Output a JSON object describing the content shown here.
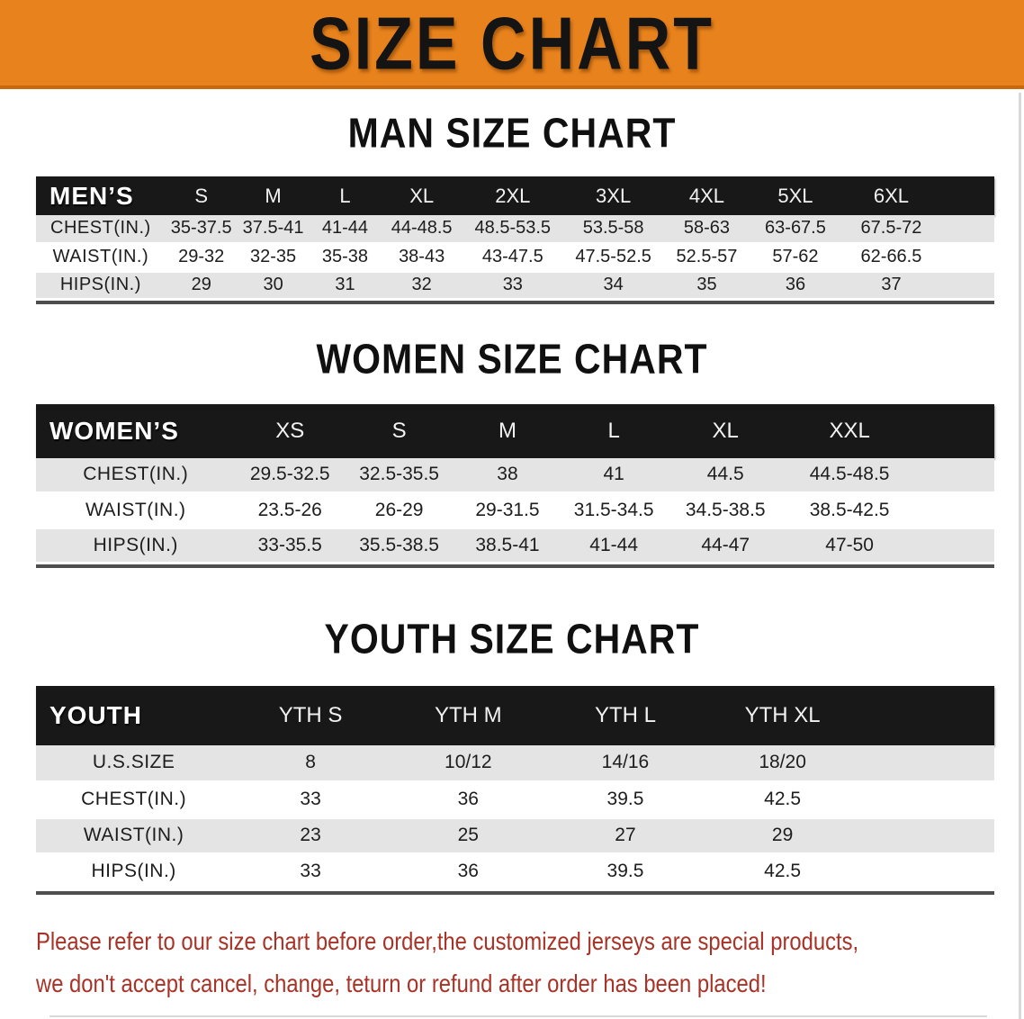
{
  "banner": {
    "title": "SIZE CHART"
  },
  "colors": {
    "banner_bg": "#E8821C",
    "banner_edge": "#C8690F",
    "header_bar": "#181818",
    "row_gray": "#E4E4E4",
    "note_red": "#A93226"
  },
  "sections": [
    {
      "heading": "MAN SIZE CHART",
      "table": {
        "group_label": "MEN’S",
        "columns": [
          "S",
          "M",
          "L",
          "XL",
          "2XL",
          "3XL",
          "4XL",
          "5XL",
          "6XL"
        ],
        "rows": [
          {
            "label": "CHEST(IN.)",
            "values": [
              "35-37.5",
              "37.5-41",
              "41-44",
              "44-48.5",
              "48.5-53.5",
              "53.5-58",
              "58-63",
              "63-67.5",
              "67.5-72"
            ]
          },
          {
            "label": "WAIST(IN.)",
            "values": [
              "29-32",
              "32-35",
              "35-38",
              "38-43",
              "43-47.5",
              "47.5-52.5",
              "52.5-57",
              "57-62",
              "62-66.5"
            ]
          },
          {
            "label": "HIPS(IN.)",
            "values": [
              "29",
              "30",
              "31",
              "32",
              "33",
              "34",
              "35",
              "36",
              "37"
            ]
          }
        ]
      }
    },
    {
      "heading": "WOMEN SIZE CHART",
      "table": {
        "group_label": "WOMEN’S",
        "columns": [
          "XS",
          "S",
          "M",
          "L",
          "XL",
          "XXL"
        ],
        "rows": [
          {
            "label": "CHEST(IN.)",
            "values": [
              "29.5-32.5",
              "32.5-35.5",
              "38",
              "41",
              "44.5",
              "44.5-48.5"
            ]
          },
          {
            "label": "WAIST(IN.)",
            "values": [
              "23.5-26",
              "26-29",
              "29-31.5",
              "31.5-34.5",
              "34.5-38.5",
              "38.5-42.5"
            ]
          },
          {
            "label": "HIPS(IN.)",
            "values": [
              "33-35.5",
              "35.5-38.5",
              "38.5-41",
              "41-44",
              "44-47",
              "47-50"
            ]
          }
        ]
      }
    },
    {
      "heading": "YOUTH SIZE CHART",
      "table": {
        "group_label": "YOUTH",
        "columns": [
          "YTH S",
          "YTH M",
          "YTH L",
          "YTH XL"
        ],
        "rows": [
          {
            "label": "U.S.SIZE",
            "values": [
              "8",
              "10/12",
              "14/16",
              "18/20"
            ]
          },
          {
            "label": "CHEST(IN.)",
            "values": [
              "33",
              "36",
              "39.5",
              "42.5"
            ]
          },
          {
            "label": "WAIST(IN.)",
            "values": [
              "23",
              "25",
              "27",
              "29"
            ]
          },
          {
            "label": "HIPS(IN.)",
            "values": [
              "33",
              "36",
              "39.5",
              "42.5"
            ]
          }
        ]
      }
    }
  ],
  "note": {
    "line1": "Please refer to our size chart before order,the customized jerseys are special products,",
    "line2": "we don't accept cancel, change, teturn or refund after order has been placed!"
  }
}
